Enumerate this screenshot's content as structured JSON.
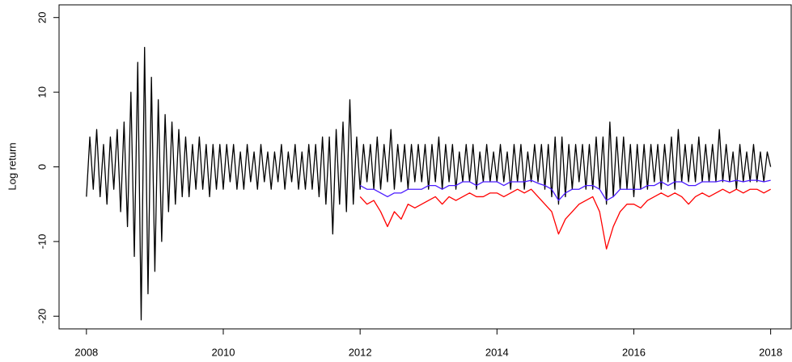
{
  "chart_data": {
    "type": "line",
    "ylabel": "Log return",
    "xlim": [
      2007.6,
      2018.3
    ],
    "xticks": [
      2008,
      2010,
      2012,
      2014,
      2016,
      2018
    ],
    "ylim": [
      -21.7,
      21.7
    ],
    "yticks": [
      -20,
      -10,
      0,
      10,
      20
    ],
    "series": [
      {
        "color": "#000000",
        "x": [
          2008,
          2008.05,
          2008.1,
          2008.15,
          2008.2,
          2008.25,
          2008.3,
          2008.35,
          2008.4,
          2008.45,
          2008.5,
          2008.55,
          2008.6,
          2008.65,
          2008.7,
          2008.75,
          2008.8,
          2008.85,
          2008.9,
          2008.95,
          2009,
          2009.05,
          2009.1,
          2009.15,
          2009.2,
          2009.25,
          2009.3,
          2009.35,
          2009.4,
          2009.45,
          2009.5,
          2009.55,
          2009.6,
          2009.65,
          2009.7,
          2009.75,
          2009.8,
          2009.85,
          2009.9,
          2009.95,
          2010,
          2010.05,
          2010.1,
          2010.15,
          2010.2,
          2010.25,
          2010.3,
          2010.35,
          2010.4,
          2010.45,
          2010.5,
          2010.55,
          2010.6,
          2010.65,
          2010.7,
          2010.75,
          2010.8,
          2010.85,
          2010.9,
          2010.95,
          2011,
          2011.05,
          2011.1,
          2011.15,
          2011.2,
          2011.25,
          2011.3,
          2011.35,
          2011.4,
          2011.45,
          2011.5,
          2011.55,
          2011.6,
          2011.65,
          2011.7,
          2011.75,
          2011.8,
          2011.85,
          2011.9,
          2011.95,
          2012,
          2012.05,
          2012.1,
          2012.15,
          2012.2,
          2012.25,
          2012.3,
          2012.35,
          2012.4,
          2012.45,
          2012.5,
          2012.55,
          2012.6,
          2012.65,
          2012.7,
          2012.75,
          2012.8,
          2012.85,
          2012.9,
          2012.95,
          2013,
          2013.05,
          2013.1,
          2013.15,
          2013.2,
          2013.25,
          2013.3,
          2013.35,
          2013.4,
          2013.45,
          2013.5,
          2013.55,
          2013.6,
          2013.65,
          2013.7,
          2013.75,
          2013.8,
          2013.85,
          2013.9,
          2013.95,
          2014,
          2014.05,
          2014.1,
          2014.15,
          2014.2,
          2014.25,
          2014.3,
          2014.35,
          2014.4,
          2014.45,
          2014.5,
          2014.55,
          2014.6,
          2014.65,
          2014.7,
          2014.75,
          2014.8,
          2014.85,
          2014.9,
          2014.95,
          2015,
          2015.05,
          2015.1,
          2015.15,
          2015.2,
          2015.25,
          2015.3,
          2015.35,
          2015.4,
          2015.45,
          2015.5,
          2015.55,
          2015.6,
          2015.65,
          2015.7,
          2015.75,
          2015.8,
          2015.85,
          2015.9,
          2015.95,
          2016,
          2016.05,
          2016.1,
          2016.15,
          2016.2,
          2016.25,
          2016.3,
          2016.35,
          2016.4,
          2016.45,
          2016.5,
          2016.55,
          2016.6,
          2016.65,
          2016.7,
          2016.75,
          2016.8,
          2016.85,
          2016.9,
          2016.95,
          2017,
          2017.05,
          2017.1,
          2017.15,
          2017.2,
          2017.25,
          2017.3,
          2017.35,
          2017.4,
          2017.45,
          2017.5,
          2017.55,
          2017.6,
          2017.65,
          2017.7,
          2017.75,
          2017.8,
          2017.85,
          2017.9,
          2017.95,
          2018
        ],
        "values": [
          -4,
          4,
          -3,
          5,
          -4,
          3,
          -5,
          4,
          -3,
          5,
          -6,
          6,
          -8,
          10,
          -12,
          14,
          -20.5,
          16,
          -17,
          12,
          -14,
          9,
          -10,
          7,
          -6,
          6,
          -5,
          5,
          -4,
          4,
          -4,
          3,
          -3,
          4,
          -3,
          3,
          -4,
          3,
          -3,
          3,
          -3,
          3,
          -2,
          3,
          -3,
          2,
          -3,
          3,
          -2,
          2,
          -3,
          3,
          -2,
          2,
          -3,
          2,
          -2,
          3,
          -3,
          2,
          -2,
          3,
          -3,
          2,
          -3,
          3,
          -3,
          3,
          -4,
          4,
          -5,
          4,
          -9,
          5,
          -5,
          6,
          -6,
          9,
          -5,
          4,
          -3,
          3,
          -2,
          3,
          -3,
          4,
          -3,
          3,
          -2,
          5,
          -3,
          3,
          -2,
          3,
          -3,
          3,
          -2,
          3,
          -2,
          3,
          -3,
          3,
          -2,
          4,
          -3,
          3,
          -2,
          3,
          -3,
          2,
          -2,
          3,
          -2,
          3,
          -3,
          2,
          -2,
          3,
          -2,
          2,
          -2,
          3,
          -2,
          2,
          -3,
          3,
          -2,
          3,
          -3,
          2,
          -2,
          3,
          -2,
          3,
          -3,
          3,
          -4,
          4,
          -5,
          4,
          -4,
          3,
          -3,
          3,
          -2,
          3,
          -3,
          3,
          -3,
          4,
          -3,
          4,
          -5,
          6,
          -4,
          4,
          -3,
          4,
          -3,
          3,
          -4,
          3,
          -3,
          3,
          -3,
          3,
          -2,
          3,
          -3,
          3,
          -2,
          4,
          -3,
          5,
          -2,
          3,
          -2,
          3,
          -2,
          4,
          -2,
          3,
          -2,
          3,
          -2,
          5,
          -2,
          3,
          -2,
          2,
          -3,
          3,
          -2,
          2,
          -2,
          3,
          -2,
          2,
          -2,
          2,
          0
        ]
      },
      {
        "color": "#ff0000",
        "x": [
          2012,
          2012.1,
          2012.2,
          2012.3,
          2012.4,
          2012.5,
          2012.6,
          2012.7,
          2012.8,
          2012.9,
          2013,
          2013.1,
          2013.2,
          2013.3,
          2013.4,
          2013.5,
          2013.6,
          2013.7,
          2013.8,
          2013.9,
          2014,
          2014.1,
          2014.2,
          2014.3,
          2014.4,
          2014.5,
          2014.6,
          2014.7,
          2014.8,
          2014.9,
          2015,
          2015.1,
          2015.2,
          2015.3,
          2015.4,
          2015.5,
          2015.6,
          2015.7,
          2015.8,
          2015.9,
          2016,
          2016.1,
          2016.2,
          2016.3,
          2016.4,
          2016.5,
          2016.6,
          2016.7,
          2016.8,
          2016.9,
          2017,
          2017.1,
          2017.2,
          2017.3,
          2017.4,
          2017.5,
          2017.6,
          2017.7,
          2017.8,
          2017.9,
          2018
        ],
        "values": [
          -4,
          -5,
          -4.5,
          -6,
          -8,
          -6,
          -7,
          -5,
          -5.5,
          -5,
          -4.5,
          -4,
          -5,
          -4,
          -4.5,
          -4,
          -3.5,
          -4,
          -4,
          -3.5,
          -3.5,
          -4,
          -3.5,
          -3,
          -3.5,
          -3,
          -4,
          -5,
          -6,
          -9,
          -7,
          -6,
          -5,
          -4.5,
          -4,
          -6,
          -11,
          -8,
          -6,
          -5,
          -5,
          -5.5,
          -4.5,
          -4,
          -3.5,
          -4,
          -3.5,
          -4,
          -5,
          -4,
          -3.5,
          -4,
          -3.5,
          -3,
          -3.5,
          -3,
          -3.5,
          -3,
          -3,
          -3.5,
          -3
        ]
      },
      {
        "color": "#4b1cff",
        "x": [
          2012,
          2012.1,
          2012.2,
          2012.3,
          2012.4,
          2012.5,
          2012.6,
          2012.7,
          2012.8,
          2012.9,
          2013,
          2013.1,
          2013.2,
          2013.3,
          2013.4,
          2013.5,
          2013.6,
          2013.7,
          2013.8,
          2013.9,
          2014,
          2014.1,
          2014.2,
          2014.3,
          2014.4,
          2014.5,
          2014.6,
          2014.7,
          2014.8,
          2014.9,
          2015,
          2015.1,
          2015.2,
          2015.3,
          2015.4,
          2015.5,
          2015.6,
          2015.7,
          2015.8,
          2015.9,
          2016,
          2016.1,
          2016.2,
          2016.3,
          2016.4,
          2016.5,
          2016.6,
          2016.7,
          2016.8,
          2016.9,
          2017,
          2017.1,
          2017.2,
          2017.3,
          2017.4,
          2017.5,
          2017.6,
          2017.7,
          2017.8,
          2017.9,
          2018
        ],
        "values": [
          -2.5,
          -3,
          -3,
          -3.5,
          -4,
          -3.5,
          -3.5,
          -3,
          -3,
          -3,
          -2.5,
          -2.5,
          -3,
          -2.5,
          -2.5,
          -2,
          -2,
          -2.5,
          -2,
          -2,
          -2,
          -2.5,
          -2,
          -2,
          -2,
          -1.8,
          -2.2,
          -2.5,
          -3,
          -4.5,
          -3.5,
          -3,
          -3,
          -2.5,
          -2.5,
          -3,
          -4.5,
          -4,
          -3,
          -3,
          -3,
          -3,
          -2.5,
          -2.5,
          -2,
          -2.5,
          -2,
          -2,
          -2.5,
          -2.5,
          -2,
          -2,
          -2,
          -1.8,
          -2,
          -1.8,
          -2,
          -1.8,
          -1.8,
          -2,
          -1.8
        ]
      }
    ]
  }
}
